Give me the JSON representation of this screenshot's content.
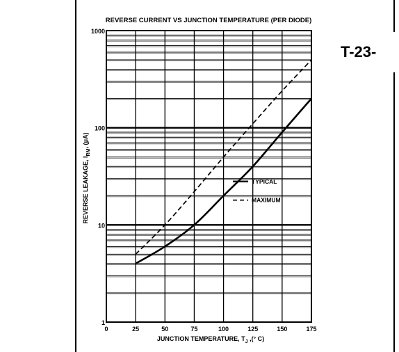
{
  "stamp": "T-23-",
  "chart_data": {
    "type": "line",
    "title": "REVERSE CURRENT VS JUNCTION TEMPERATURE (PER DIODE)",
    "xlabel": "JUNCTION TEMPERATURE, T",
    "xlabel_sub": "J",
    "xlabel_unit": " ,(° C)",
    "ylabel": "REVERSE LEAKAGE, I",
    "ylabel_sub": "RM",
    "ylabel_unit": ", (μA)",
    "xlim": [
      0,
      175
    ],
    "ylim": [
      1,
      1000
    ],
    "y_scale": "log",
    "grid": true,
    "x_ticks": [
      0,
      25,
      50,
      75,
      100,
      125,
      150,
      175
    ],
    "y_ticks": [
      1,
      10,
      100,
      1000
    ],
    "legend_position": "center-right",
    "series": [
      {
        "name": "TYPICAL",
        "style": "solid",
        "x": [
          25,
          50,
          75,
          100,
          125,
          150,
          175
        ],
        "values": [
          4,
          6,
          10,
          20,
          40,
          90,
          200
        ]
      },
      {
        "name": "MAXIMUM",
        "style": "dashed",
        "x": [
          25,
          50,
          75,
          100,
          125,
          150,
          175
        ],
        "values": [
          5,
          10,
          22,
          50,
          110,
          240,
          500
        ]
      }
    ]
  }
}
